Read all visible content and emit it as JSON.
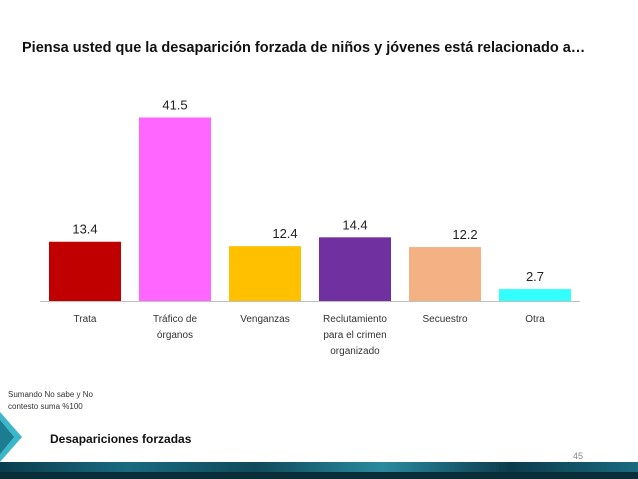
{
  "page": {
    "title": "Piensa usted que la desaparición forzada de niños y jóvenes está relacionado a…",
    "note": "Sumando No sabe y No contesto suma %100",
    "section_label": "Desapariciones forzadas",
    "page_number": "45"
  },
  "colors": {
    "bars": [
      "#c00000",
      "#ff66ff",
      "#ffc000",
      "#7030a0",
      "#f4b183",
      "#33ffff"
    ],
    "axis": "#bfbfbf",
    "accent": "#17a2b8"
  },
  "chart_data": {
    "type": "bar",
    "title": "Piensa usted que la desaparición forzada de niños y jóvenes está relacionado a…",
    "categories": [
      "Trata",
      "Tráfico de órganos",
      "Venganzas",
      "Reclutamiento para el crimen organizado",
      "Secuestro",
      "Otra"
    ],
    "category_lines": [
      [
        "Trata"
      ],
      [
        "Tráfico de",
        "órganos"
      ],
      [
        "Venganzas"
      ],
      [
        "Reclutamiento",
        "para el crimen",
        "organizado"
      ],
      [
        "Secuestro"
      ],
      [
        "Otra"
      ]
    ],
    "values": [
      13.4,
      41.5,
      12.4,
      14.4,
      12.2,
      2.7
    ],
    "value_labels": [
      "13.4",
      "41.5",
      "12.4",
      "14.4",
      "12.2",
      "2.7"
    ],
    "label_position": [
      "above",
      "above",
      "inside-right",
      "above",
      "inside-right",
      "above"
    ],
    "xlabel": "",
    "ylabel": "",
    "ylim": [
      0,
      45
    ],
    "grid": false,
    "legend": "none"
  }
}
